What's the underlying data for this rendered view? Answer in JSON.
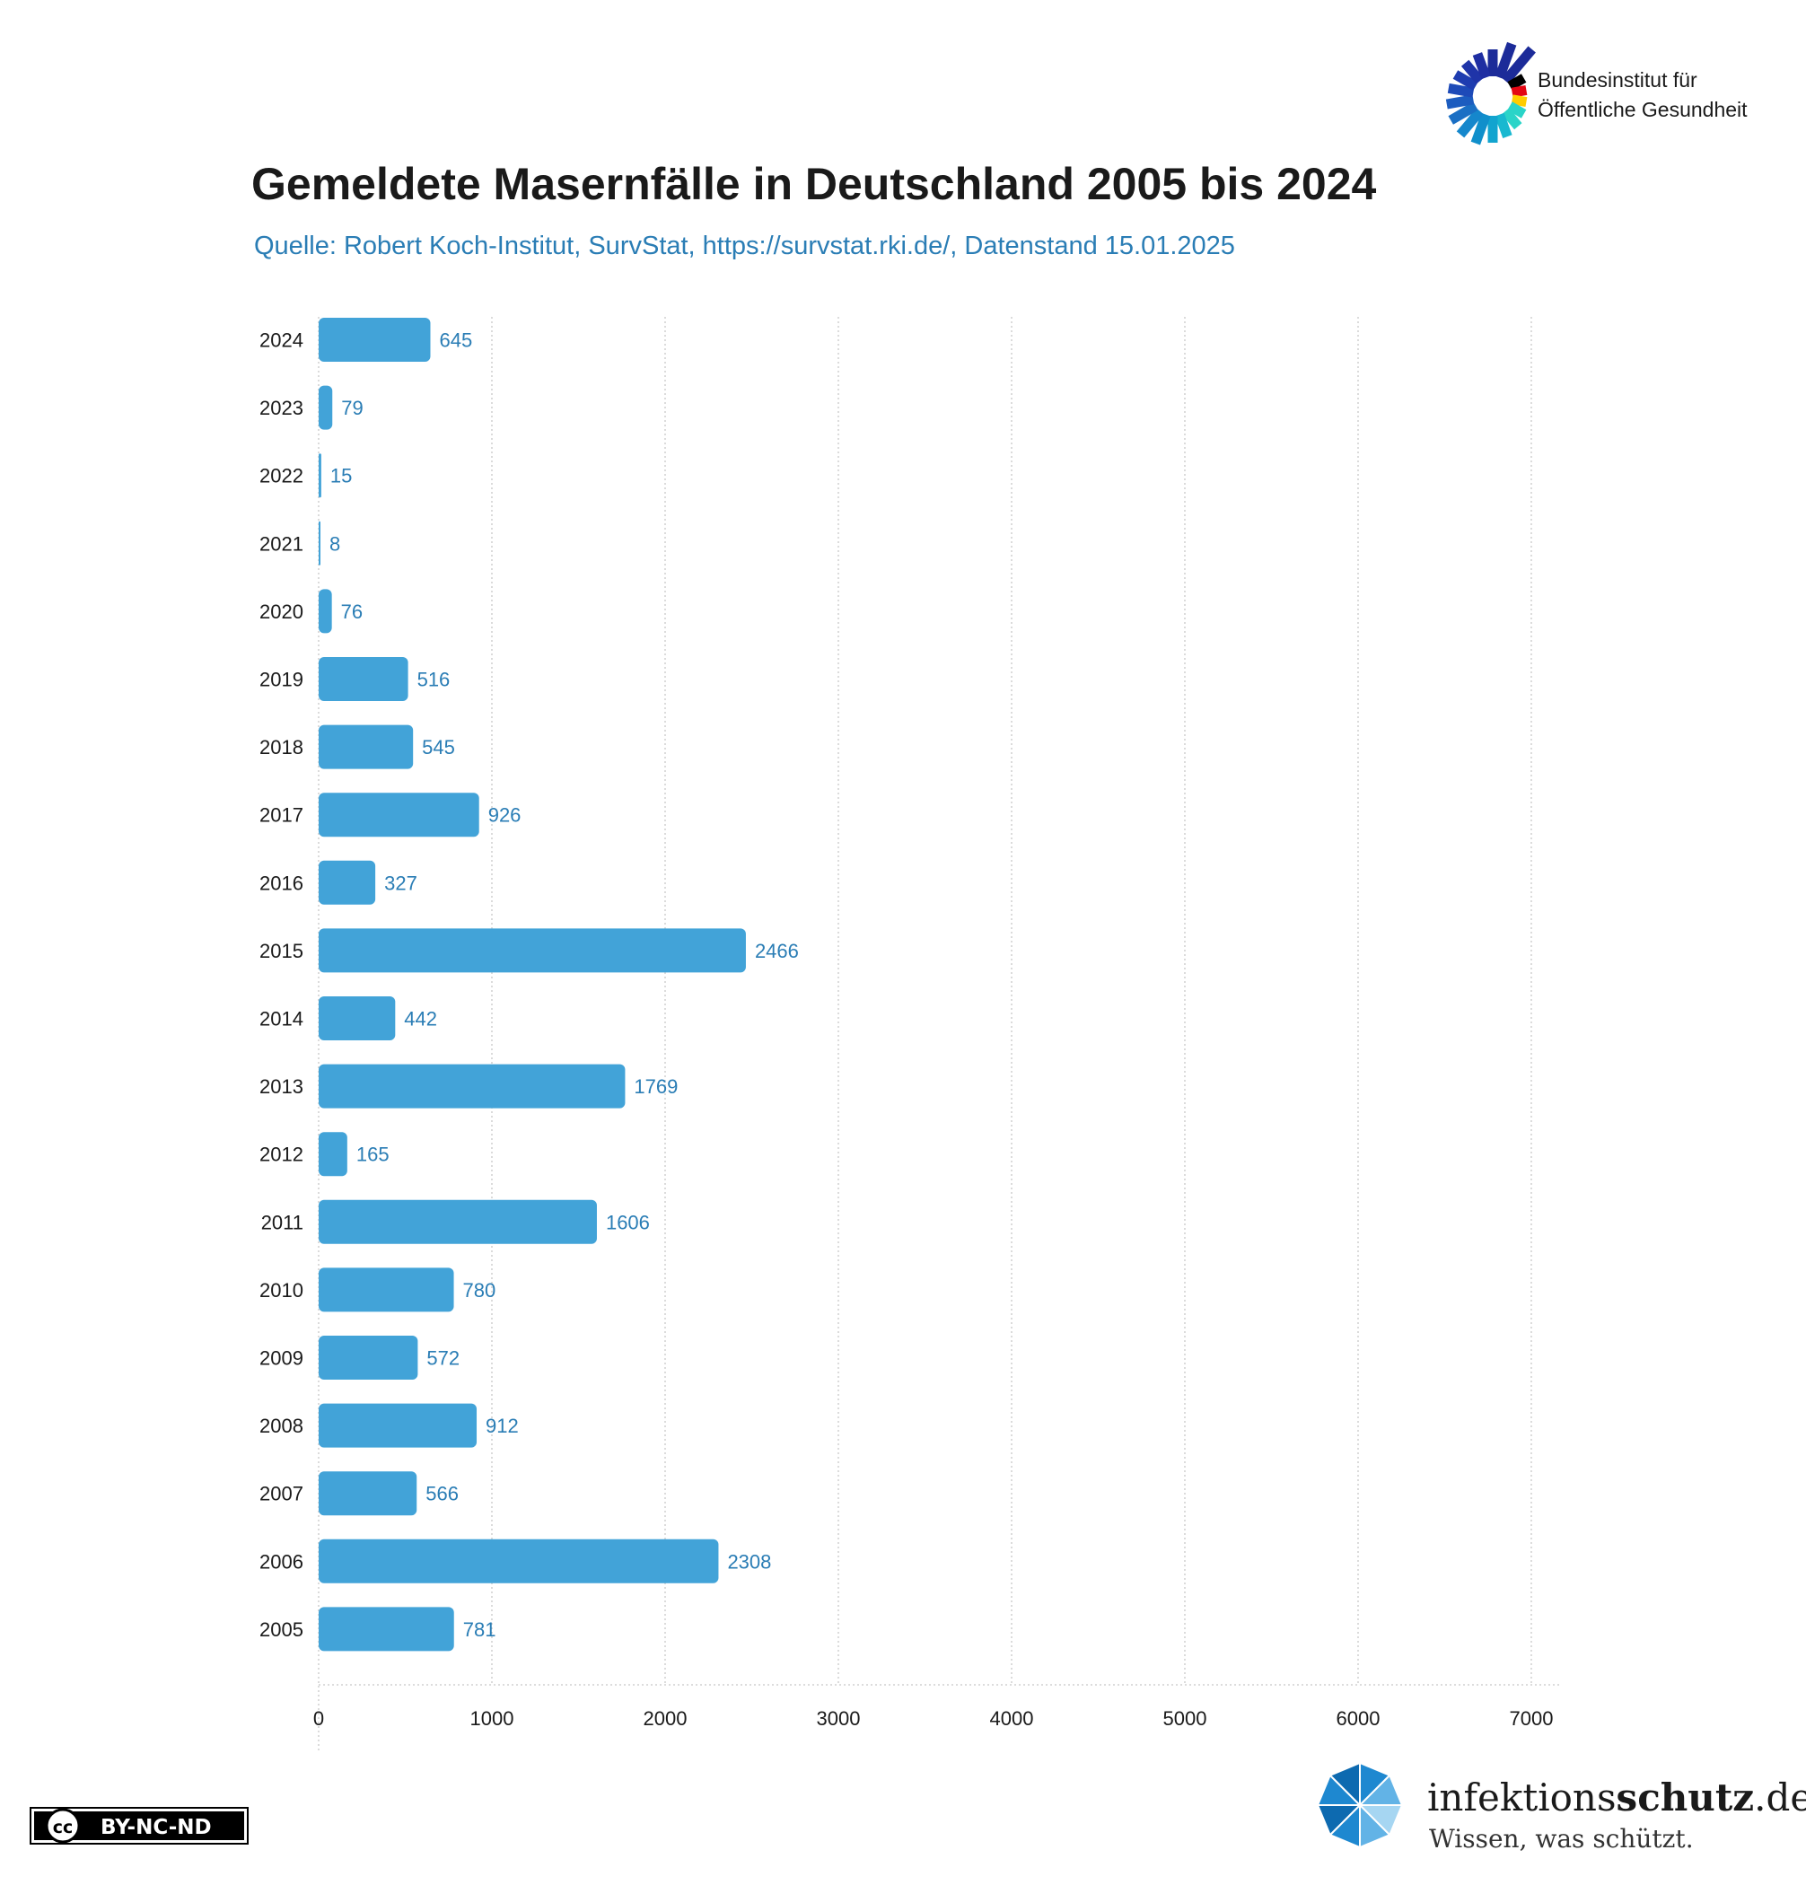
{
  "header": {
    "org_name_line1": "Bundesinstitut für",
    "org_name_line2": "Öffentliche Gesundheit"
  },
  "footer": {
    "license": "BY-NC-ND",
    "cc_mark": "cc",
    "brand_regular": "infektions",
    "brand_bold": "schutz",
    "brand_tld": ".de",
    "slogan": "Wissen, was schützt."
  },
  "colors": {
    "bar": "#42a3d8",
    "label": "#2a7db5",
    "grid": "#c8c8c8"
  },
  "chart_data": {
    "type": "bar",
    "orientation": "horizontal",
    "title": "Gemeldete Masernfälle in Deutschland 2005 bis 2024",
    "subtitle": "Quelle: Robert Koch-Institut, SurvStat, https://survstat.rki.de/, Datenstand 15.01.2025",
    "categories": [
      "2024",
      "2023",
      "2022",
      "2021",
      "2020",
      "2019",
      "2018",
      "2017",
      "2016",
      "2015",
      "2014",
      "2013",
      "2012",
      "2011",
      "2010",
      "2009",
      "2008",
      "2007",
      "2006",
      "2005"
    ],
    "values": [
      645,
      79,
      15,
      8,
      76,
      516,
      545,
      926,
      327,
      2466,
      442,
      1769,
      165,
      1606,
      780,
      572,
      912,
      566,
      2308,
      781
    ],
    "xlim": [
      0,
      7000
    ],
    "xticks": [
      0,
      1000,
      2000,
      3000,
      4000,
      5000,
      6000,
      7000
    ],
    "grid": true,
    "xlabel": "",
    "ylabel": ""
  }
}
